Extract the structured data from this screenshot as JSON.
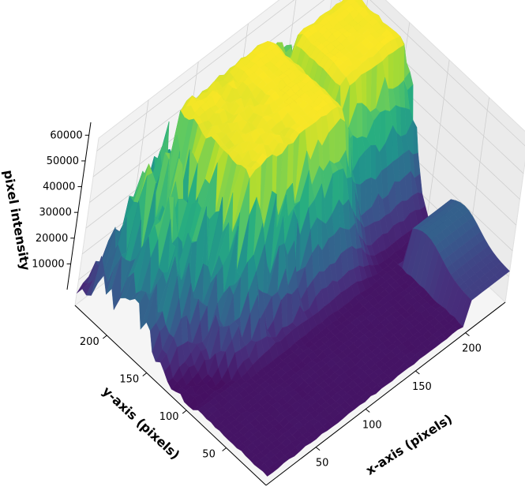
{
  "chart_data": {
    "type": "surface3d",
    "xlabel": "x-axis (pixels)",
    "ylabel": "y-axis (pixels)",
    "zlabel": "pixel intensity",
    "x_ticks": [
      50,
      100,
      150,
      200
    ],
    "y_ticks": [
      50,
      100,
      150,
      200
    ],
    "z_ticks": [
      10000,
      20000,
      30000,
      40000,
      50000,
      60000
    ],
    "z_tick_labels": [
      "10000",
      "20000",
      "30000",
      "40000",
      "50000",
      "60000"
    ],
    "xlim": [
      0,
      240
    ],
    "ylim": [
      0,
      240
    ],
    "zlim": [
      0,
      65000
    ],
    "colormap": [
      "#440154",
      "#472d7b",
      "#3b528b",
      "#2c728e",
      "#21918c",
      "#28ae80",
      "#5ec962",
      "#addc30",
      "#fde725"
    ],
    "saturation_value": 65000,
    "grid": true,
    "plateaus": [
      {
        "x_center": 110,
        "y_center": 175,
        "x_halfwidth": 42,
        "y_halfwidth": 42,
        "height": 65000
      },
      {
        "x_center": 200,
        "y_center": 175,
        "x_halfwidth": 25,
        "y_halfwidth": 28,
        "height": 65000
      },
      {
        "x_center": 50,
        "y_center": 185,
        "x_halfwidth": 20,
        "y_halfwidth": 20,
        "height": 60000
      },
      {
        "x_center": 150,
        "y_center": 200,
        "x_halfwidth": 25,
        "y_halfwidth": 25,
        "height": 58000
      }
    ],
    "background_level": 4000
  }
}
